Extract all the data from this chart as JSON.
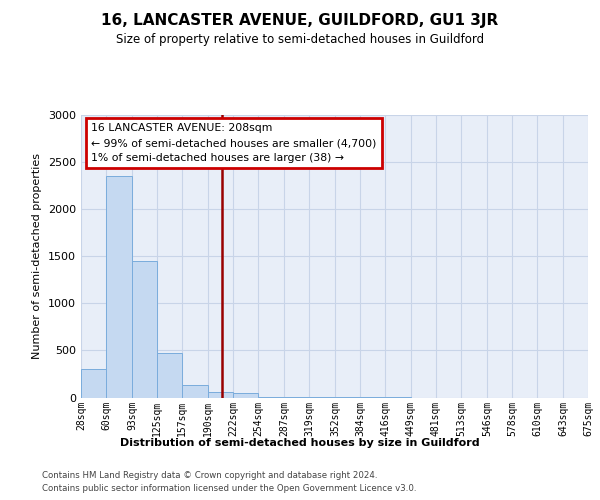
{
  "title": "16, LANCASTER AVENUE, GUILDFORD, GU1 3JR",
  "subtitle": "Size of property relative to semi-detached houses in Guildford",
  "xlabel": "Distribution of semi-detached houses by size in Guildford",
  "ylabel": "Number of semi-detached properties",
  "property_size": 208,
  "property_label": "16 LANCASTER AVENUE: 208sqm",
  "pct_smaller_text": "← 99% of semi-detached houses are smaller (4,700)",
  "pct_larger_text": "1% of semi-detached houses are larger (38) →",
  "bin_edges": [
    28,
    60,
    93,
    125,
    157,
    190,
    222,
    254,
    287,
    319,
    352,
    384,
    416,
    449,
    481,
    513,
    546,
    578,
    610,
    643,
    675
  ],
  "bar_heights": [
    300,
    2350,
    1450,
    470,
    130,
    60,
    50,
    10,
    5,
    3,
    2,
    1,
    1,
    0,
    0,
    0,
    0,
    0,
    0,
    0
  ],
  "bar_facecolor": "#c5d9f1",
  "bar_edgecolor": "#7aacdc",
  "vline_color": "#990000",
  "vline_x": 208,
  "annotation_box_edgecolor": "#cc0000",
  "grid_color": "#c8d4e8",
  "background_color": "#e8eef8",
  "ylim": [
    0,
    3000
  ],
  "footer_line1": "Contains HM Land Registry data © Crown copyright and database right 2024.",
  "footer_line2": "Contains public sector information licensed under the Open Government Licence v3.0."
}
